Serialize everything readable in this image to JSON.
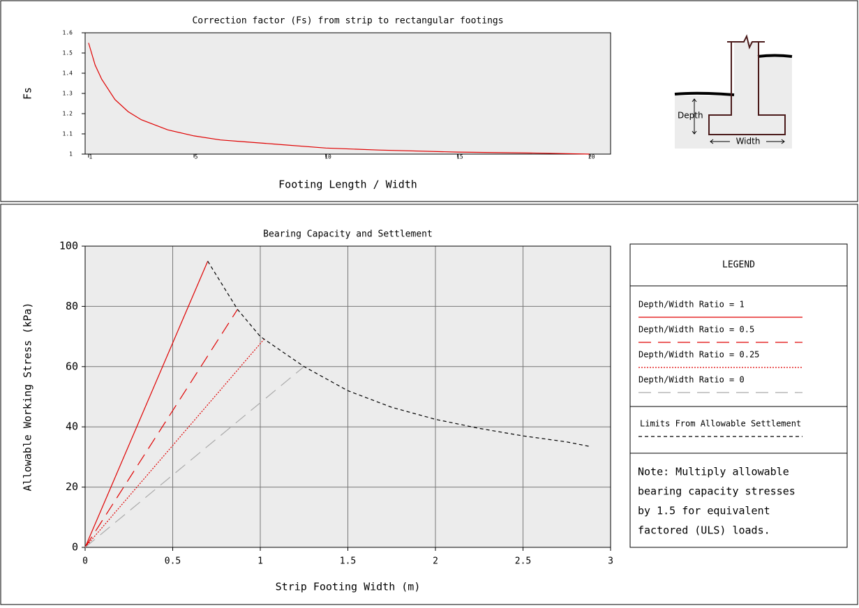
{
  "chart_data": [
    {
      "type": "line",
      "title": "Correction factor (Fs) from strip to rectangular footings",
      "x_label": "Footing Length / Width",
      "y_label": "Fs",
      "series": [
        {
          "color": "#e00000",
          "dash": "solid",
          "x": [
            1,
            1.25,
            1.5,
            2,
            2.5,
            3,
            4,
            5,
            6,
            7,
            8,
            10,
            12,
            15,
            18,
            20
          ],
          "values": [
            1.55,
            1.44,
            1.37,
            1.27,
            1.21,
            1.17,
            1.12,
            1.09,
            1.07,
            1.06,
            1.05,
            1.03,
            1.02,
            1.01,
            1.005,
            1.0
          ]
        }
      ],
      "xlim": [
        0.87,
        20.8
      ],
      "ylim": [
        1,
        1.6
      ],
      "xticks": [
        1,
        5,
        10,
        15,
        20
      ],
      "yticks": [
        1,
        1.1,
        1.2,
        1.3,
        1.4,
        1.5,
        1.6
      ],
      "grid": false
    },
    {
      "type": "line",
      "title": "Bearing Capacity and Settlement",
      "x_label": "Strip Footing Width (m)",
      "y_label": "Allowable Working Stress (kPa)",
      "legend_title": "LEGEND",
      "series": [
        {
          "name": "Depth/Width Ratio = 1",
          "color": "#e00000",
          "dash": "solid",
          "x": [
            0,
            0.7
          ],
          "values": [
            0,
            95
          ]
        },
        {
          "name": "Depth/Width Ratio = 0.5",
          "color": "#e00000",
          "dash": "long-dash",
          "x": [
            0,
            0.87
          ],
          "values": [
            0,
            79
          ]
        },
        {
          "name": "Depth/Width Ratio = 0.25",
          "color": "#e00000",
          "dash": "dotted",
          "x": [
            0,
            1.02
          ],
          "values": [
            0,
            69
          ]
        },
        {
          "name": "Depth/Width Ratio = 0",
          "color": "#aaaaaa",
          "dash": "long-dash",
          "x": [
            0,
            1.25
          ],
          "values": [
            0,
            60
          ]
        },
        {
          "name": "Limits From Allowable Settlement",
          "color": "#000000",
          "dash": "short-dash",
          "x": [
            0.7,
            0.87,
            1.0,
            1.25,
            1.5,
            1.75,
            2.0,
            2.25,
            2.5,
            2.75,
            2.88
          ],
          "values": [
            95,
            79,
            70,
            60,
            52,
            46.5,
            42.5,
            39.5,
            37,
            35,
            33.5
          ]
        }
      ],
      "note": [
        "Note: Multiply allowable",
        "bearing capacity stresses",
        "by 1.5 for equivalent",
        "factored (ULS) loads."
      ],
      "xlim": [
        0,
        3
      ],
      "ylim": [
        0,
        100
      ],
      "xticks": [
        0,
        0.5,
        1,
        1.5,
        2,
        2.5,
        3
      ],
      "yticks": [
        0,
        20,
        40,
        60,
        80,
        100
      ],
      "grid": true
    }
  ],
  "diagram": {
    "depth_label": "Depth",
    "width_label": "Width"
  }
}
